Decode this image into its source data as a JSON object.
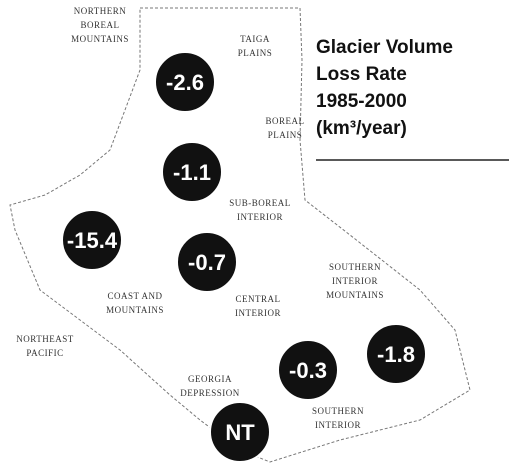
{
  "title": [
    "Glacier Volume",
    "Loss Rate",
    "1985-2000",
    "(km³/year)"
  ],
  "circles": [
    -2.6,
    -1.1,
    -15.4,
    -0.7,
    -0.3,
    -1.8,
    "NT"
  ],
  "regions": [
    [
      "NORTHERN",
      "BOREAL",
      "MOUNTAINS"
    ],
    [
      "TAIGA",
      "PLAINS"
    ],
    [
      "BOREAL",
      "PLAINS"
    ],
    [
      "SUB-BOREAL",
      "INTERIOR"
    ],
    [
      "SOUTHERN",
      "INTERIOR",
      "MOUNTAINS"
    ],
    [
      "COAST AND",
      "MOUNTAINS"
    ],
    [
      "CENTRAL",
      "INTERIOR"
    ],
    [
      "NORTHEAST",
      "PACIFIC"
    ],
    [
      "GEORGIA",
      "DEPRESSION"
    ],
    [
      "SOUTHERN",
      "INTERIOR"
    ]
  ]
}
